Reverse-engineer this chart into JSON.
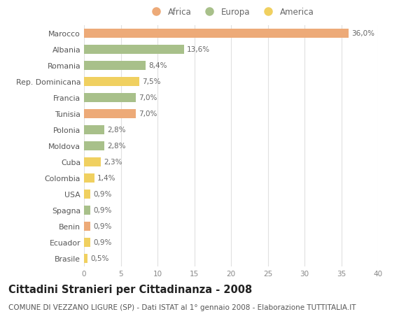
{
  "countries": [
    "Marocco",
    "Albania",
    "Romania",
    "Rep. Dominicana",
    "Francia",
    "Tunisia",
    "Polonia",
    "Moldova",
    "Cuba",
    "Colombia",
    "USA",
    "Spagna",
    "Benin",
    "Ecuador",
    "Brasile"
  ],
  "values": [
    36.0,
    13.6,
    8.4,
    7.5,
    7.0,
    7.0,
    2.8,
    2.8,
    2.3,
    1.4,
    0.9,
    0.9,
    0.9,
    0.9,
    0.5
  ],
  "labels": [
    "36,0%",
    "13,6%",
    "8,4%",
    "7,5%",
    "7,0%",
    "7,0%",
    "2,8%",
    "2,8%",
    "2,3%",
    "1,4%",
    "0,9%",
    "0,9%",
    "0,9%",
    "0,9%",
    "0,5%"
  ],
  "continents": [
    "Africa",
    "Europa",
    "Europa",
    "America",
    "Europa",
    "Africa",
    "Europa",
    "Europa",
    "America",
    "America",
    "America",
    "Europa",
    "Africa",
    "America",
    "America"
  ],
  "colors": {
    "Africa": "#EDAA78",
    "Europa": "#A8C08A",
    "America": "#F0D060"
  },
  "xlim": [
    0,
    40
  ],
  "xticks": [
    0,
    5,
    10,
    15,
    20,
    25,
    30,
    35,
    40
  ],
  "title": "Cittadini Stranieri per Cittadinanza - 2008",
  "subtitle": "COMUNE DI VEZZANO LIGURE (SP) - Dati ISTAT al 1° gennaio 2008 - Elaborazione TUTTITALIA.IT",
  "background_color": "#FFFFFF",
  "grid_color": "#E0E0E0",
  "bar_height": 0.55,
  "label_fontsize": 7.5,
  "ytick_fontsize": 7.8,
  "xtick_fontsize": 7.5,
  "title_fontsize": 10.5,
  "subtitle_fontsize": 7.5,
  "legend_fontsize": 8.5
}
